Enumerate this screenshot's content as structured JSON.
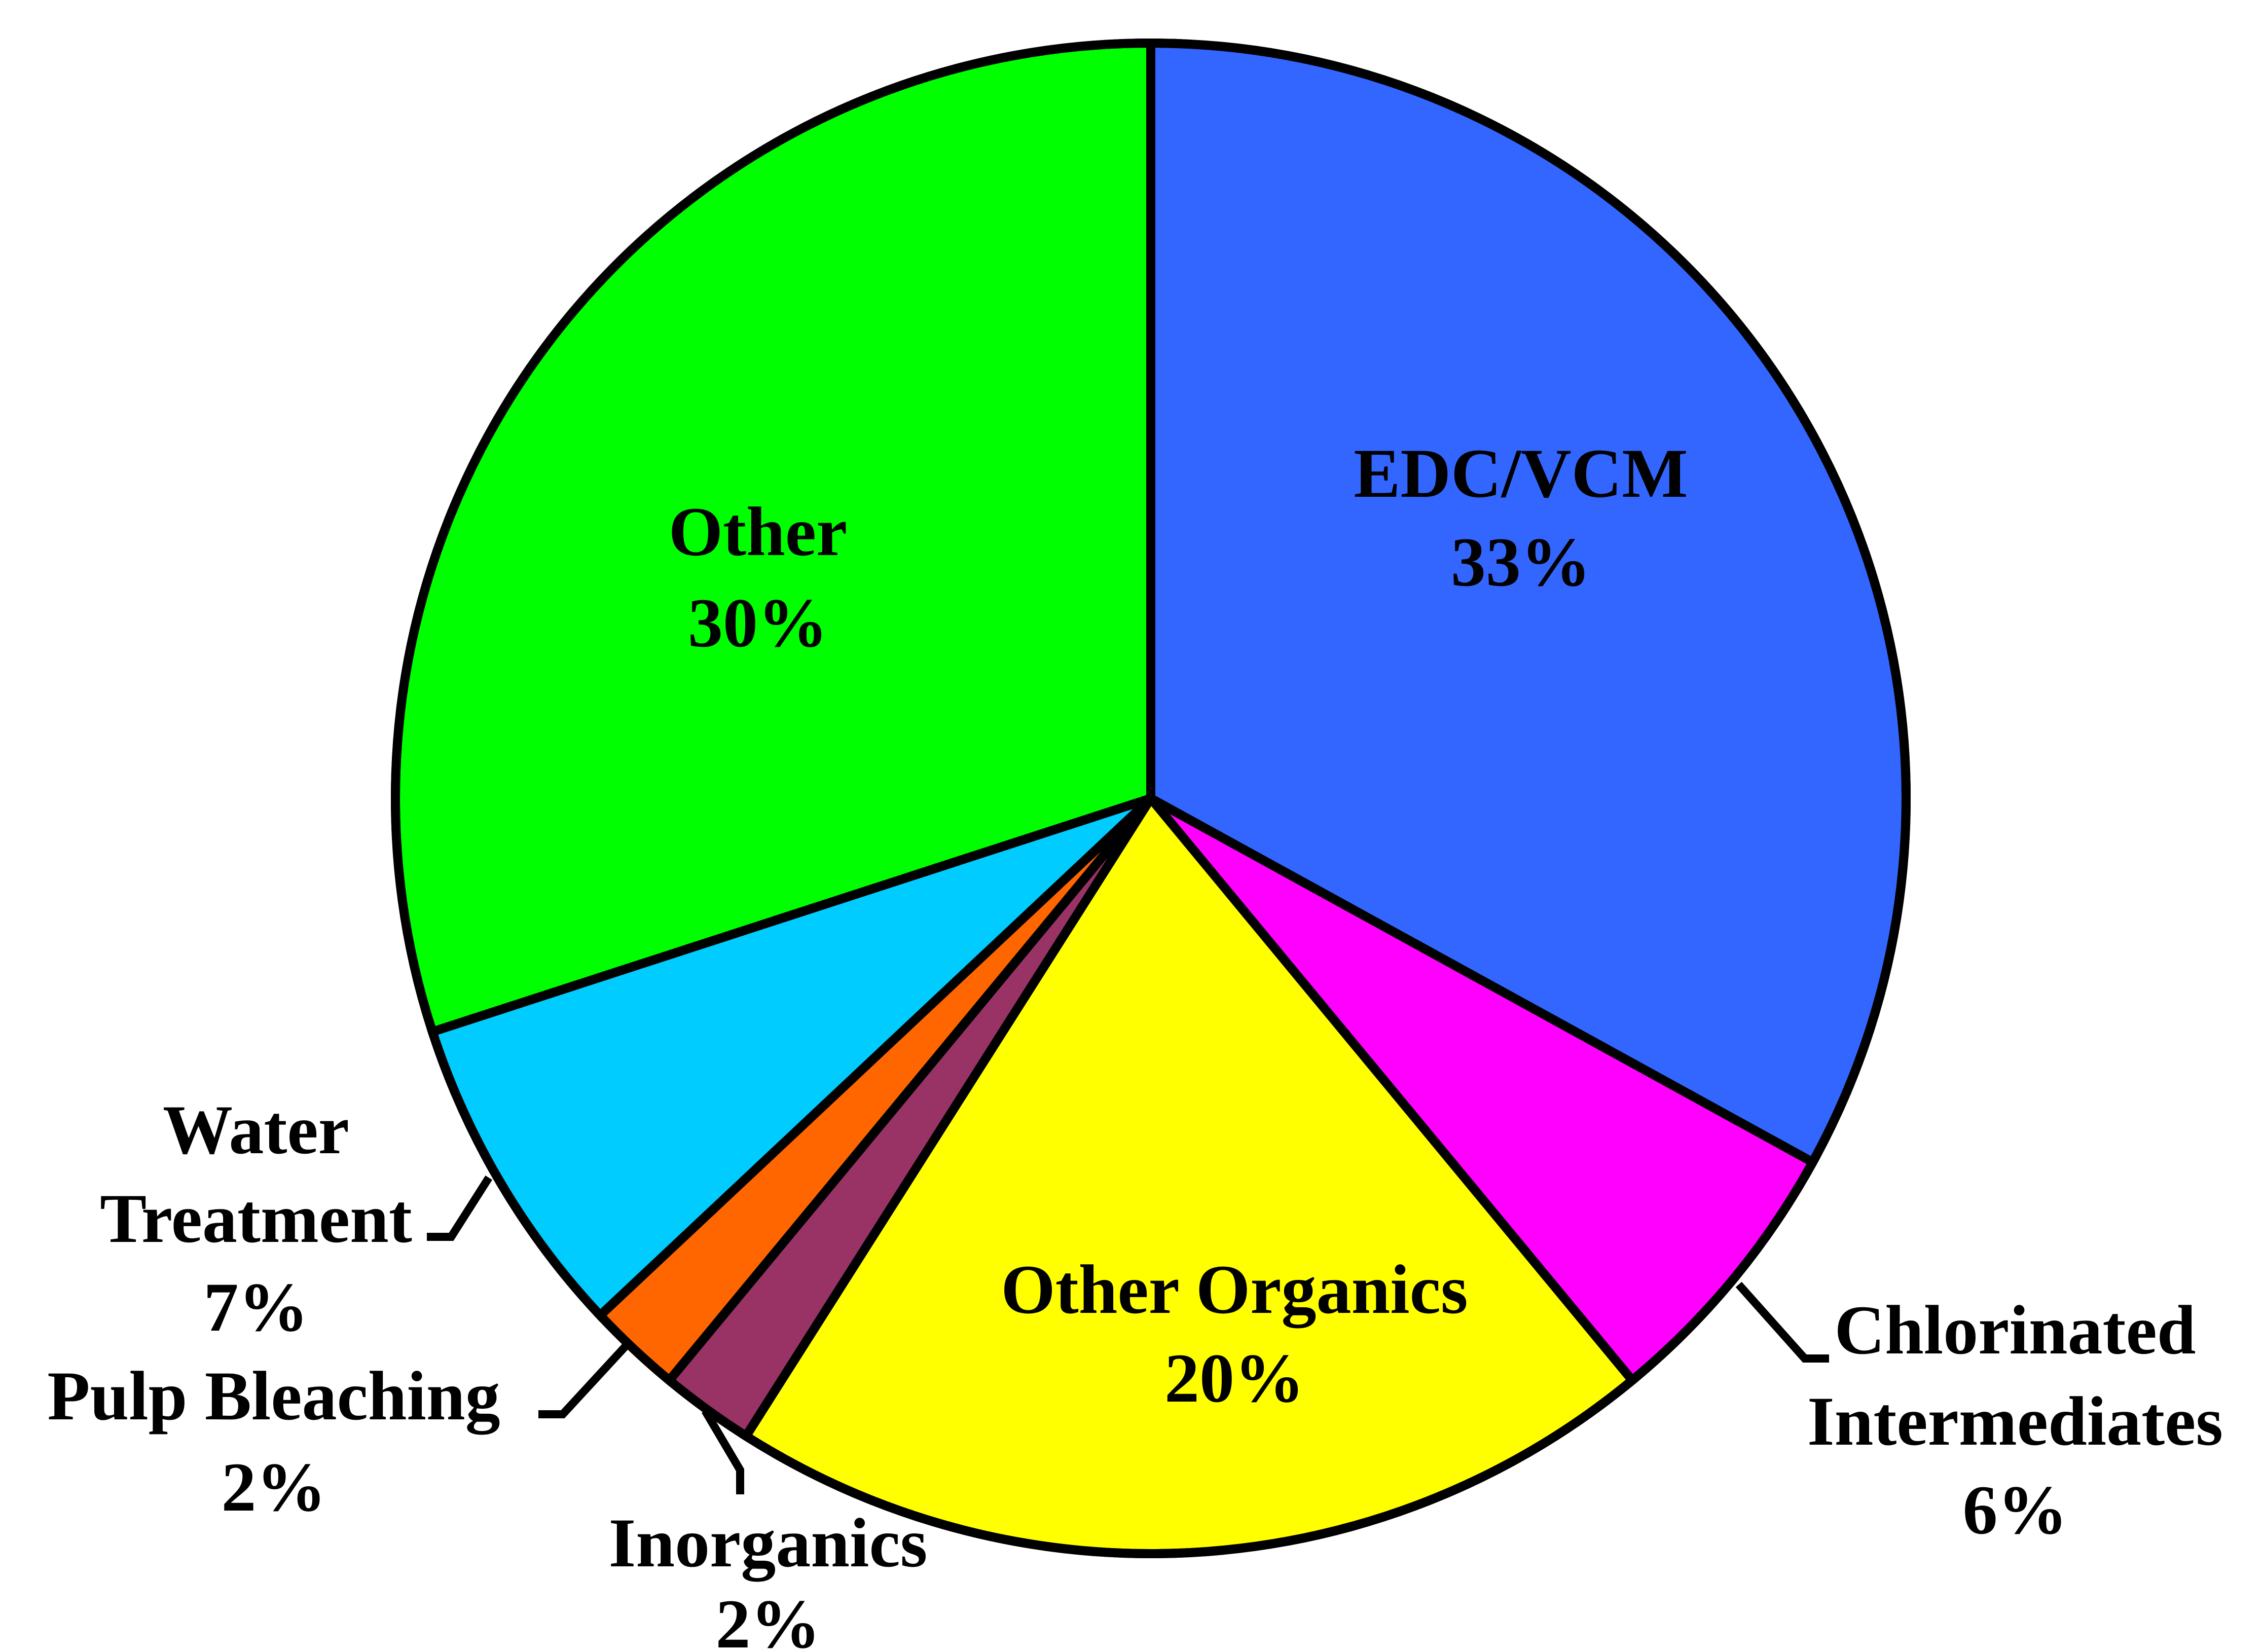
{
  "chart_data": {
    "type": "pie",
    "start_angle_deg": 0,
    "direction": "clockwise",
    "slices": [
      {
        "category": "EDC/VCM",
        "value": 33,
        "value_label": "33%",
        "color": "#3366FF"
      },
      {
        "category": "Chlorinated Intermediates",
        "value": 6,
        "value_label": "6%",
        "color": "#FF00FF"
      },
      {
        "category": "Other Organics",
        "value": 20,
        "value_label": "20%",
        "color": "#FFFF00"
      },
      {
        "category": "Inorganics",
        "value": 2,
        "value_label": "2%",
        "color": "#993366"
      },
      {
        "category": "Pulp Bleaching",
        "value": 2,
        "value_label": "2%",
        "color": "#FF6600"
      },
      {
        "category": "Water Treatment",
        "value": 7,
        "value_label": "7%",
        "color": "#00CCFF"
      },
      {
        "category": "Other",
        "value": 30,
        "value_label": "30%",
        "color": "#00FF00"
      }
    ],
    "labels": {
      "edc_vcm": {
        "name": "EDC/VCM",
        "value": "33%"
      },
      "chlorinated_intermediates": {
        "name_line1": "Chlorinated",
        "name_line2": "Intermediates",
        "value": "6%"
      },
      "other_organics": {
        "name": "Other Organics",
        "value": "20%"
      },
      "inorganics": {
        "name": "Inorganics",
        "value": "2%"
      },
      "pulp_bleaching": {
        "name": "Pulp Bleaching",
        "value": "2%"
      },
      "water_treatment": {
        "name_line1": "Water",
        "name_line2": "Treatment",
        "value": "7%"
      },
      "other": {
        "name": "Other",
        "value": "30%"
      }
    },
    "title": "",
    "legend": "none"
  }
}
